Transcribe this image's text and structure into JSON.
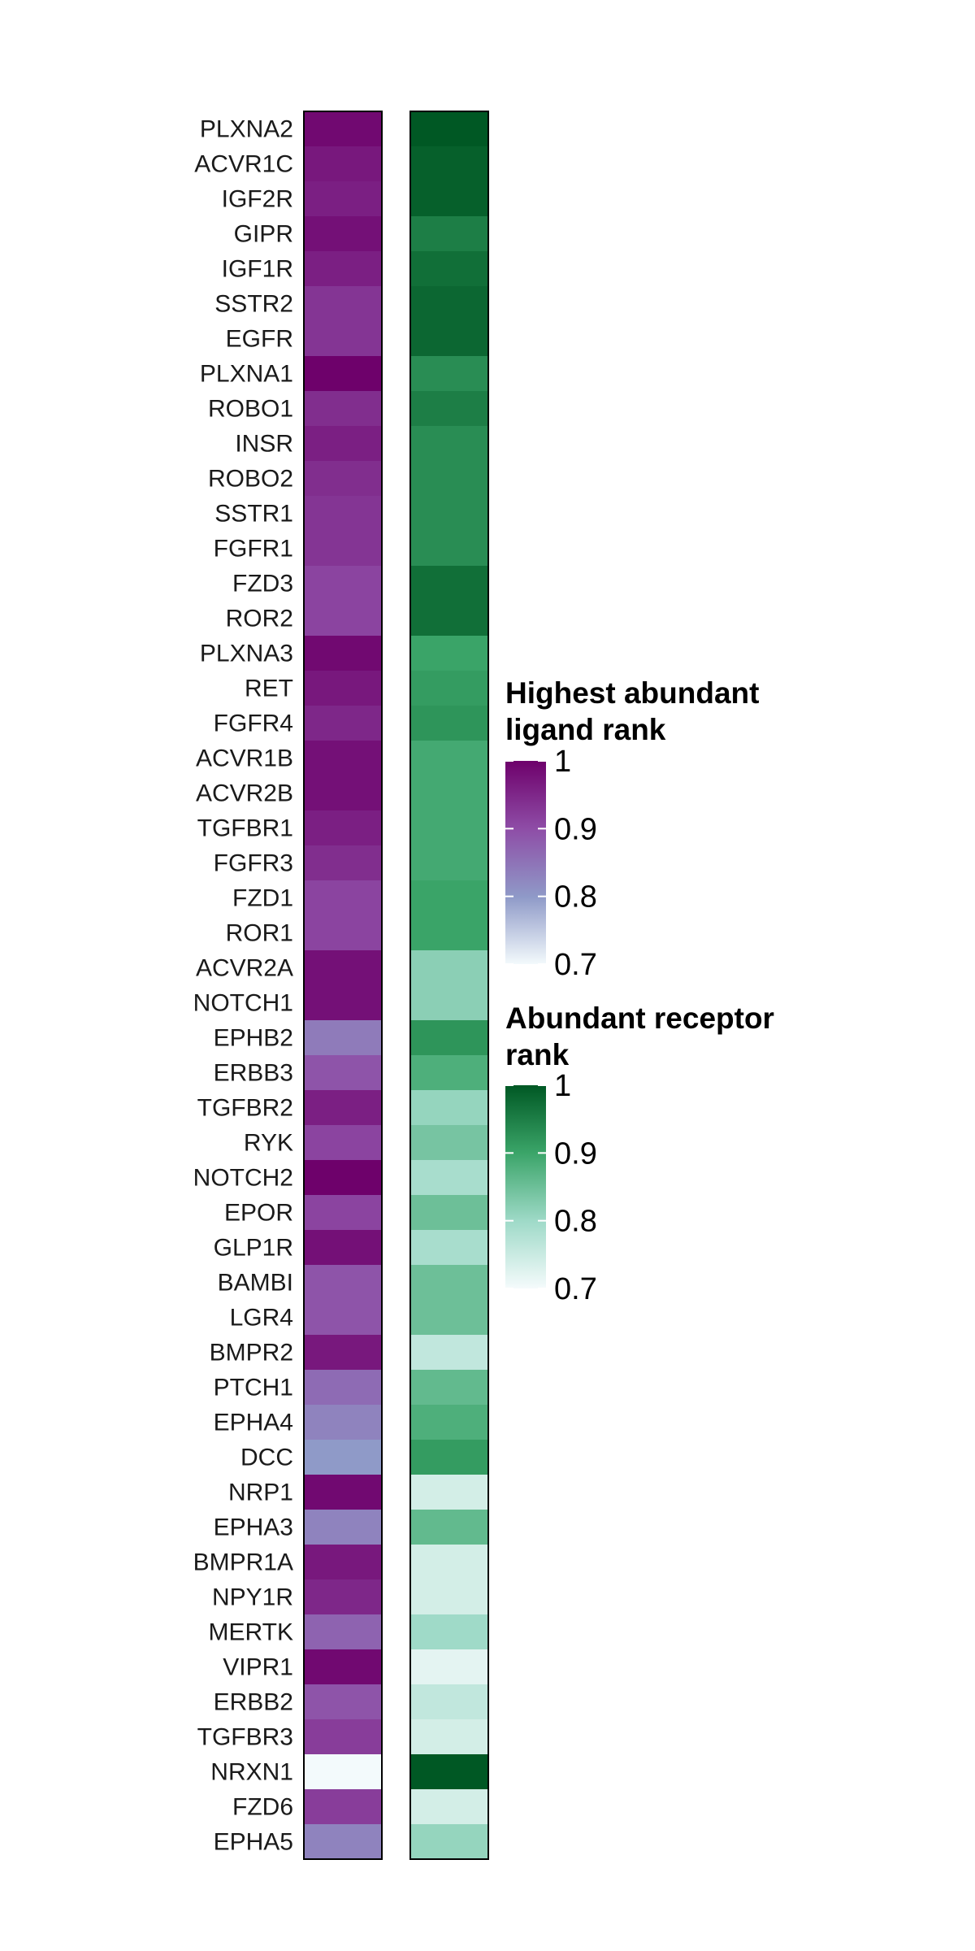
{
  "chart_data": {
    "type": "heatmap",
    "rows": [
      "PLXNA2",
      "ACVR1C",
      "IGF2R",
      "GIPR",
      "IGF1R",
      "SSTR2",
      "EGFR",
      "PLXNA1",
      "ROBO1",
      "INSR",
      "ROBO2",
      "SSTR1",
      "FGFR1",
      "FZD3",
      "ROR2",
      "PLXNA3",
      "RET",
      "FGFR4",
      "ACVR1B",
      "ACVR2B",
      "TGFBR1",
      "FGFR3",
      "FZD1",
      "ROR1",
      "ACVR2A",
      "NOTCH1",
      "EPHB2",
      "ERBB3",
      "TGFBR2",
      "RYK",
      "NOTCH2",
      "EPOR",
      "GLP1R",
      "BAMBI",
      "LGR4",
      "BMPR2",
      "PTCH1",
      "EPHA4",
      "DCC",
      "NRP1",
      "EPHA3",
      "BMPR1A",
      "NPY1R",
      "MERTK",
      "VIPR1",
      "ERBB2",
      "TGFBR3",
      "NRXN1",
      "FZD6",
      "EPHA5"
    ],
    "series": [
      {
        "name": "Highest abundant ligand rank",
        "values": [
          0.99,
          0.97,
          0.96,
          0.98,
          0.96,
          0.93,
          0.93,
          1.0,
          0.94,
          0.96,
          0.94,
          0.93,
          0.93,
          0.91,
          0.91,
          0.99,
          0.97,
          0.95,
          0.98,
          0.98,
          0.96,
          0.94,
          0.91,
          0.91,
          0.98,
          0.98,
          0.84,
          0.89,
          0.96,
          0.91,
          1.0,
          0.91,
          0.98,
          0.89,
          0.89,
          0.97,
          0.86,
          0.83,
          0.8,
          0.99,
          0.83,
          0.97,
          0.95,
          0.87,
          0.99,
          0.89,
          0.92,
          0.7,
          0.92,
          0.83
        ]
      },
      {
        "name": "Abundant receptor rank",
        "values": [
          1.0,
          0.99,
          0.99,
          0.95,
          0.97,
          0.98,
          0.98,
          0.93,
          0.95,
          0.93,
          0.93,
          0.93,
          0.93,
          0.97,
          0.97,
          0.9,
          0.91,
          0.92,
          0.89,
          0.89,
          0.89,
          0.89,
          0.9,
          0.9,
          0.82,
          0.82,
          0.92,
          0.88,
          0.81,
          0.84,
          0.79,
          0.85,
          0.79,
          0.85,
          0.85,
          0.76,
          0.86,
          0.88,
          0.91,
          0.74,
          0.86,
          0.74,
          0.74,
          0.8,
          0.72,
          0.76,
          0.74,
          1.0,
          0.74,
          0.81
        ]
      }
    ],
    "legends": [
      {
        "title_line1": "Highest abundant",
        "title_line2": "ligand rank",
        "ticks": [
          "1",
          "0.9",
          "0.8",
          "0.7"
        ],
        "range": [
          0.7,
          1
        ],
        "palette": "purple",
        "colors": [
          "#f3fafc",
          "#8f9ac8",
          "#8e4ca6",
          "#6e016b"
        ]
      },
      {
        "title_line1": "Abundant receptor",
        "title_line2": "rank",
        "ticks": [
          "1",
          "0.9",
          "0.8",
          "0.7"
        ],
        "range": [
          0.7,
          1
        ],
        "palette": "green",
        "colors": [
          "#f5fbfc",
          "#9fdac8",
          "#3aa468",
          "#005824"
        ]
      }
    ],
    "grid": false,
    "legend_position": "right"
  }
}
